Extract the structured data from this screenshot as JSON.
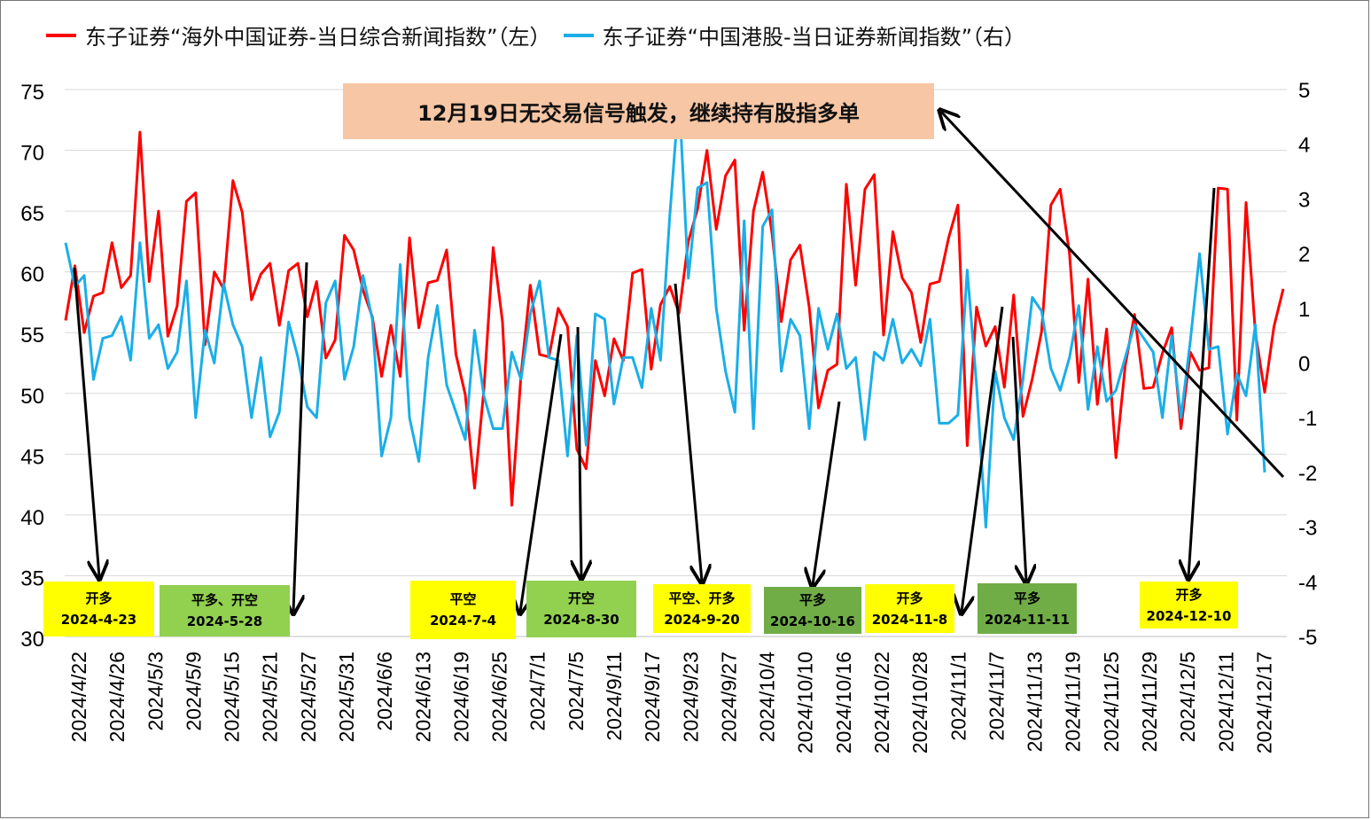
{
  "chart_data": {
    "type": "line",
    "legend": [
      {
        "label": "东子证券“海外中国证券-当日综合新闻指数”（左）",
        "color": "#ff0000"
      },
      {
        "label": "东子证券“中国港股-当日证券新闻指数”（右）",
        "color": "#1aaee8"
      }
    ],
    "y_left": {
      "min": 30,
      "max": 75,
      "ticks": [
        "30",
        "35",
        "40",
        "45",
        "50",
        "55",
        "60",
        "65",
        "70",
        "75"
      ]
    },
    "y_right": {
      "min": -5,
      "max": 5,
      "ticks": [
        "-5",
        "-4",
        "-3",
        "-2",
        "-1",
        "0",
        "1",
        "2",
        "3",
        "4",
        "5"
      ]
    },
    "x_tick_labels": [
      "2024/4/22",
      "2024/4/26",
      "2024/5/3",
      "2024/5/9",
      "2024/5/15",
      "2024/5/21",
      "2024/5/27",
      "2024/5/31",
      "2024/6/6",
      "2024/6/13",
      "2024/6/19",
      "2024/6/25",
      "2024/7/1",
      "2024/7/5",
      "2024/9/11",
      "2024/9/17",
      "2024/9/23",
      "2024/9/27",
      "2024/10/4",
      "2024/10/10",
      "2024/10/16",
      "2024/10/22",
      "2024/10/28",
      "2024/11/1",
      "2024/11/7",
      "2024/11/13",
      "2024/11/19",
      "2024/11/25",
      "2024/11/29",
      "2024/12/5",
      "2024/12/11",
      "2024/12/17"
    ],
    "series": [
      {
        "name": "东子证券“海外中国证券-当日综合新闻指数”（左）",
        "axis": "left",
        "color": "#ff0000",
        "values": [
          56,
          60.5,
          55,
          58,
          58.3,
          62.4,
          58.7,
          59.7,
          71.5,
          59.2,
          65,
          54.7,
          57.2,
          65.8,
          66.5,
          54,
          60,
          58.6,
          67.5,
          64.9,
          57.7,
          59.8,
          60.7,
          55.6,
          60.1,
          60.7,
          56.3,
          59.2,
          52.9,
          54.4,
          63,
          61.8,
          58.5,
          56.3,
          51.4,
          55.6,
          51.4,
          62.8,
          55.4,
          59.1,
          59.3,
          61.8,
          53.2,
          49.9,
          42.2,
          50.3,
          62,
          55.9,
          40.8,
          51.5,
          58.9,
          53.2,
          53,
          57,
          55.5,
          45.4,
          43.8,
          52.7,
          49.8,
          54.5,
          52.7,
          59.9,
          60.2,
          52,
          57.3,
          58.8,
          56.6,
          62.5,
          65.2,
          70,
          63.5,
          67.9,
          69.2,
          55.2,
          65,
          68.2,
          63.2,
          55.9,
          61,
          62.2,
          57.1,
          48.8,
          51.9,
          52.4,
          67.2,
          58.9,
          66.8,
          68,
          54.8,
          63.3,
          59.5,
          58.3,
          54.2,
          59,
          59.2,
          62.8,
          65.5,
          45.7,
          57.1,
          53.9,
          55.5,
          50.5,
          58.1,
          48.1,
          51.2,
          55.1,
          65.5,
          66.8,
          61.5,
          50.9,
          59.4,
          49.1,
          55.3,
          44.7,
          52.3,
          56.5,
          50.4,
          50.5,
          53.3,
          55.4,
          47.1,
          53.4,
          51.9,
          52.1,
          66.9,
          66.8,
          47.8,
          65.7,
          55,
          50.1,
          55.5,
          58.6
        ]
      },
      {
        "name": "东子证券“中国港股-当日证券新闻指数”（右）",
        "axis": "right",
        "color": "#1aaee8",
        "values": [
          2.2,
          1.4,
          1.6,
          -0.3,
          0.45,
          0.5,
          0.85,
          0.05,
          2.2,
          0.45,
          0.7,
          -0.1,
          0.2,
          1.5,
          -1,
          0.6,
          0,
          1.45,
          0.7,
          0.3,
          -1,
          0.1,
          -1.35,
          -0.9,
          0.75,
          0.1,
          -0.8,
          -1,
          1.1,
          1.5,
          -0.3,
          0.3,
          1.6,
          0.8,
          -1.7,
          -1,
          1.8,
          -1,
          -1.8,
          0.1,
          1.05,
          -0.4,
          -0.9,
          -1.4,
          0.6,
          -0.6,
          -1.2,
          -1.2,
          0.2,
          -0.3,
          0.9,
          1.5,
          0.1,
          0.05,
          -1.7,
          0.5,
          -1.5,
          0.9,
          0.8,
          -0.75,
          0.1,
          0.1,
          -0.45,
          1,
          0.05,
          2.7,
          4.9,
          1.55,
          3.2,
          3.3,
          1,
          -0.15,
          -0.9,
          2.6,
          -1.2,
          2.5,
          2.8,
          -0.15,
          0.8,
          0.5,
          -1.2,
          1,
          0.25,
          0.9,
          -0.1,
          0.1,
          -1.4,
          0.2,
          0.05,
          0.8,
          0,
          0.25,
          -0.05,
          0.8,
          -1.1,
          -1.1,
          -0.95,
          1.7,
          -0.4,
          -3,
          -0.15,
          -1,
          -1.4,
          -0.3,
          1.2,
          0.95,
          -0.1,
          -0.5,
          0.1,
          1.05,
          -0.85,
          0.3,
          -0.7,
          -0.5,
          0.1,
          0.7,
          0.45,
          0.2,
          -1,
          0.5,
          -1,
          0.4,
          2,
          0.25,
          0.3,
          -1.3,
          -0.2,
          -0.6,
          0.7,
          -2
        ]
      }
    ]
  },
  "callout": {
    "text": "12月19日无交易信号触发，继续持有股指多单"
  },
  "signals": [
    {
      "action": "开多",
      "date": "2024-4-23",
      "bg": "#ffff00"
    },
    {
      "action": "平多、开空",
      "date": "2024-5-28",
      "bg": "#92d050"
    },
    {
      "action": "平空",
      "date": "2024-7-4",
      "bg": "#ffff00"
    },
    {
      "action": "开空",
      "date": "2024-8-30",
      "bg": "#92d050"
    },
    {
      "action": "平空、开多",
      "date": "2024-9-20",
      "bg": "#ffff00"
    },
    {
      "action": "平多",
      "date": "2024-10-16",
      "bg": "#70ad47"
    },
    {
      "action": "开多",
      "date": "2024-11-8",
      "bg": "#ffff00"
    },
    {
      "action": "平多",
      "date": "2024-11-11",
      "bg": "#70ad47"
    },
    {
      "action": "开多",
      "date": "2024-12-10",
      "bg": "#ffff00"
    }
  ]
}
